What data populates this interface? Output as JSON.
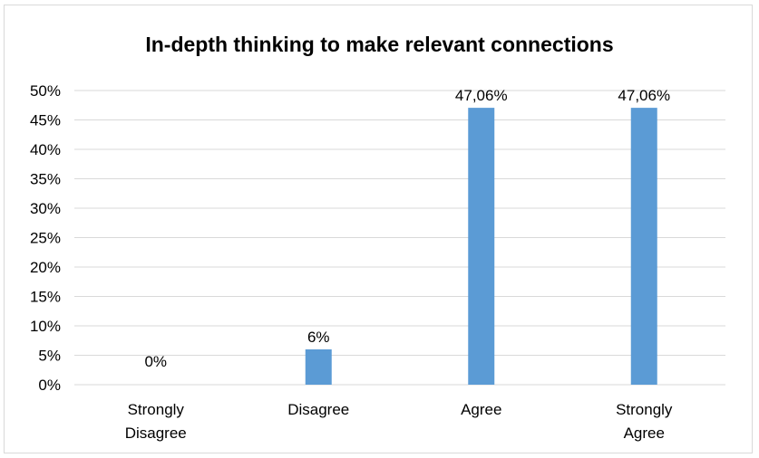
{
  "chart_data": {
    "type": "bar",
    "title": "In-depth thinking to make relevant connections",
    "categories": [
      [
        "Strongly",
        "Disagree"
      ],
      [
        "Disagree"
      ],
      [
        "Agree"
      ],
      [
        "Strongly",
        "Agree"
      ]
    ],
    "values": [
      0,
      6,
      47.06,
      47.06
    ],
    "data_labels": [
      "0%",
      "6%",
      "47,06%",
      "47,06%"
    ],
    "ylim": [
      0,
      50
    ],
    "yticks": [
      0,
      5,
      10,
      15,
      20,
      25,
      30,
      35,
      40,
      45,
      50
    ],
    "ytick_labels": [
      "0%",
      "5%",
      "10%",
      "15%",
      "20%",
      "25%",
      "30%",
      "35%",
      "40%",
      "45%",
      "50%"
    ],
    "xlabel": "",
    "ylabel": "",
    "grid": true,
    "legend": "none",
    "colors": {
      "bar": "#5b9bd5",
      "grid": "#d9d9d9",
      "frame": "#d9d9d9"
    }
  }
}
